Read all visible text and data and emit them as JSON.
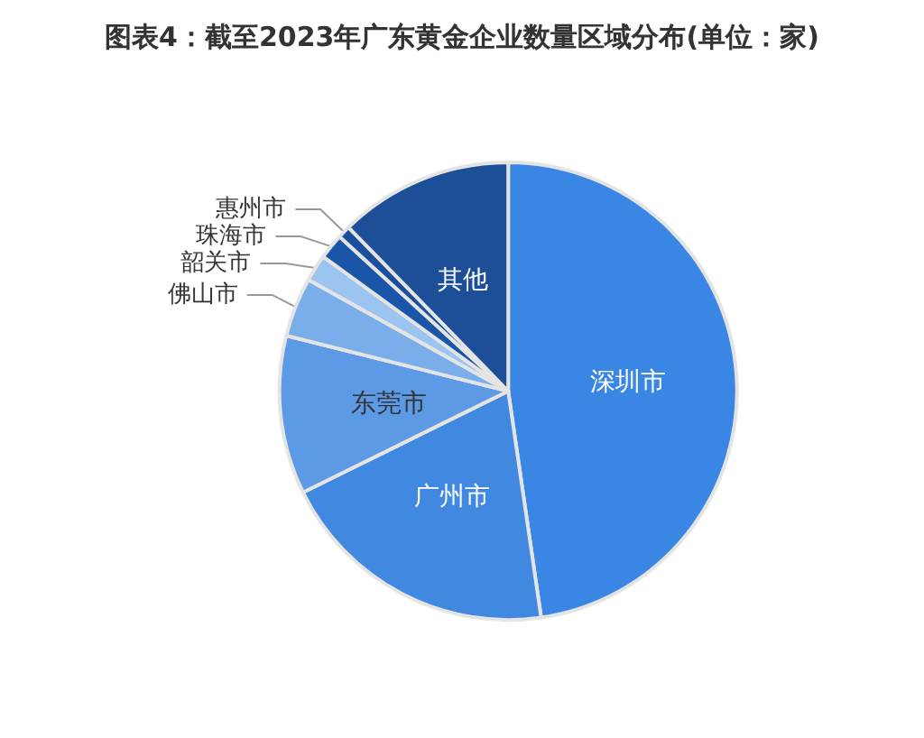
{
  "chart_data": {
    "type": "pie",
    "title": "图表4：截至2023年广东黄金企业数量区域分布(单位：家)",
    "categories": [
      "深圳市",
      "广州市",
      "东莞市",
      "佛山市",
      "韶关市",
      "珠海市",
      "惠州市",
      "其他"
    ],
    "values": [
      47.7,
      20.0,
      11.2,
      4.2,
      1.9,
      1.8,
      0.9,
      12.3
    ],
    "colors": [
      "#3a86e4",
      "#4088e0",
      "#5c9ae6",
      "#7aaeea",
      "#9cc4f0",
      "#1a56a8",
      "#1a4f9c",
      "#1c4f98"
    ],
    "legend": false
  }
}
